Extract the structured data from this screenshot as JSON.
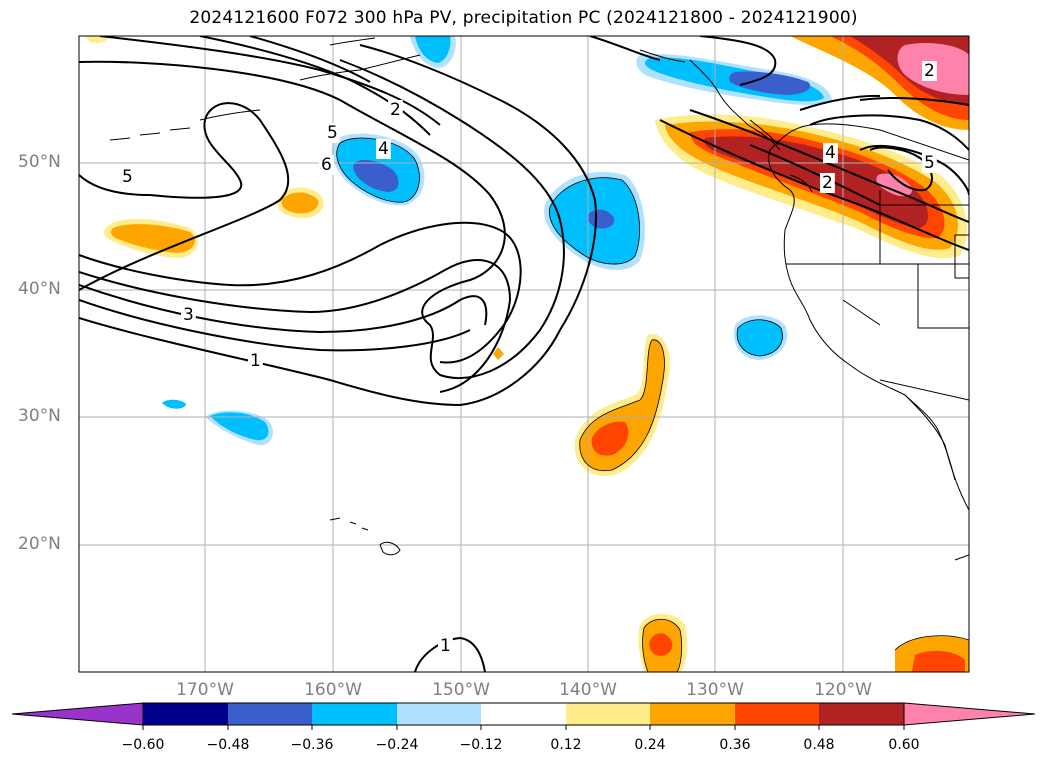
{
  "title": "2024121600 F072 300 hPa PV, precipitation PC (2024121800 - 2024121900)",
  "lat_labels": [
    "50°N",
    "40°N",
    "30°N",
    "20°N"
  ],
  "lon_labels": [
    "170°W",
    "160°W",
    "150°W",
    "140°W",
    "130°W",
    "120°W"
  ],
  "contour_labels": [
    "5",
    "5",
    "6",
    "4",
    "2",
    "3",
    "1",
    "1",
    "4",
    "2",
    "2",
    "5"
  ],
  "colorbar": {
    "ticks": [
      "−0.60",
      "−0.48",
      "−0.36",
      "−0.24",
      "−0.12",
      "0.12",
      "0.24",
      "0.36",
      "0.48",
      "0.60"
    ],
    "colors": {
      "below_min": "#9933cc",
      "n060_n048": "#00008b",
      "n048_n036": "#3a5fcd",
      "n036_n024": "#00bfff",
      "n024_n012": "#b0e2ff",
      "n012_012": "#ffffff",
      "p012_p024": "#ffec8b",
      "p024_p036": "#ffa500",
      "p036_p048": "#ff4500",
      "p048_p060": "#b22222",
      "above_max": "#ff82ab"
    }
  }
}
